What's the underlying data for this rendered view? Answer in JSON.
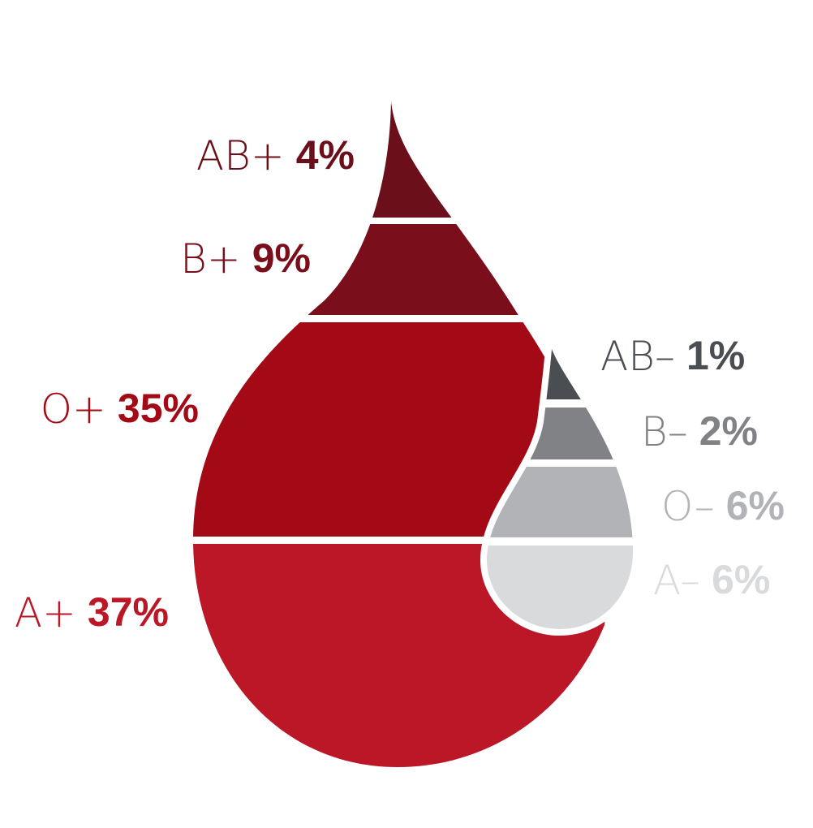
{
  "chart_data": {
    "type": "drop",
    "categories": [
      "AB+",
      "B+",
      "O+",
      "A+",
      "AB–",
      "B–",
      "O–",
      "A–"
    ],
    "values": [
      4,
      9,
      35,
      37,
      1,
      2,
      6,
      6
    ],
    "value_labels": [
      "4%",
      "9%",
      "35%",
      "37%",
      "1%",
      "2%",
      "6%",
      "6%"
    ],
    "colors": [
      "#6b0f1a",
      "#7a0e1a",
      "#a30a16",
      "#bb1727",
      "#4a4d52",
      "#808285",
      "#b1b3b6",
      "#d9dadc"
    ]
  }
}
